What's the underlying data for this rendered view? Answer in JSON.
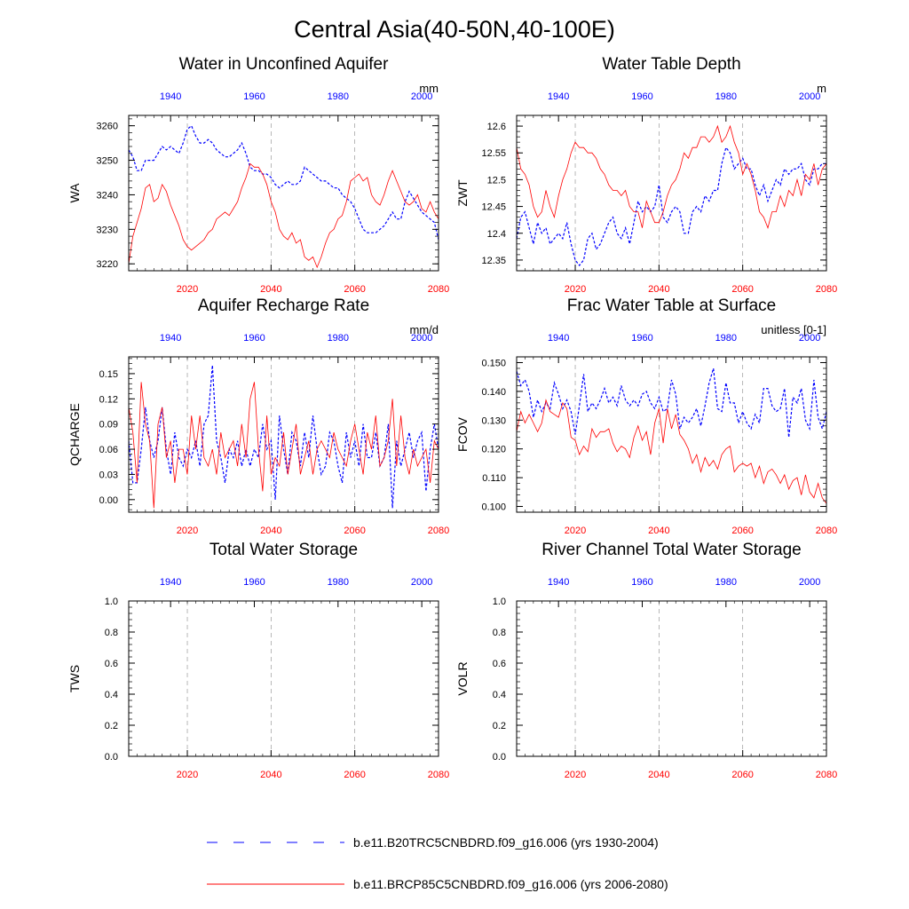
{
  "page_title": "Central Asia(40-50N,40-100E)",
  "colors": {
    "hist": "#0000ff",
    "future": "#ff0000",
    "axis": "#000000",
    "grid": "#999999"
  },
  "legend": [
    {
      "label": "b.e11.B20TRC5CNBDRD.f09_g16.006 (yrs 1930-2004)",
      "color": "#0000ff",
      "style": "dashed"
    },
    {
      "label": "b.e11.BRCP85C5CNBDRD.f09_g16.006 (yrs 2006-2080)",
      "color": "#ff0000",
      "style": "solid"
    }
  ],
  "chart_data": [
    {
      "type": "line",
      "title": "Water in Unconfined Aquifer",
      "ylabel": "WA",
      "units": "mm",
      "ylim": [
        3218,
        3263
      ],
      "yticks": [
        3220,
        3230,
        3240,
        3250,
        3260
      ],
      "bottom_axis": {
        "range": [
          2006,
          2080
        ],
        "ticks": [
          2020,
          2040,
          2060,
          2080
        ]
      },
      "top_axis": {
        "range": [
          1930,
          2004
        ],
        "ticks": [
          1940,
          1960,
          1980,
          2000
        ]
      },
      "vgrid": [
        2020,
        2040,
        2060
      ],
      "series": [
        {
          "color": "#0000ff",
          "dash": true,
          "x_from": 1930,
          "values": [
            3253,
            3251,
            3247,
            3247,
            3250,
            3250,
            3250,
            3252,
            3254,
            3253,
            3254,
            3253,
            3252,
            3255,
            3259,
            3260,
            3257,
            3255,
            3255,
            3256,
            3255,
            3253,
            3252,
            3251,
            3251,
            3252,
            3253,
            3255,
            3252,
            3248,
            3247,
            3247,
            3246,
            3246,
            3245,
            3243,
            3242,
            3243,
            3244,
            3243,
            3243,
            3244,
            3248,
            3247,
            3246,
            3245,
            3244,
            3244,
            3243,
            3242,
            3242,
            3240,
            3239,
            3238,
            3236,
            3233,
            3230,
            3229,
            3229,
            3229,
            3230,
            3231,
            3233,
            3235,
            3233,
            3233,
            3238,
            3241,
            3239,
            3237,
            3235,
            3234,
            3233,
            3232,
            3227
          ]
        },
        {
          "color": "#ff0000",
          "dash": false,
          "x_from": 2006,
          "values": [
            3220,
            3228,
            3232,
            3236,
            3242,
            3243,
            3238,
            3239,
            3243,
            3241,
            3237,
            3234,
            3231,
            3227,
            3225,
            3224,
            3225,
            3226,
            3227,
            3229,
            3230,
            3233,
            3234,
            3235,
            3234,
            3236,
            3238,
            3242,
            3245,
            3249,
            3248,
            3248,
            3246,
            3243,
            3238,
            3235,
            3230,
            3228,
            3227,
            3229,
            3226,
            3227,
            3222,
            3221,
            3222,
            3219,
            3222,
            3226,
            3229,
            3230,
            3233,
            3234,
            3238,
            3244,
            3245,
            3246,
            3244,
            3245,
            3240,
            3238,
            3237,
            3240,
            3244,
            3247,
            3244,
            3241,
            3238,
            3237,
            3238,
            3240,
            3236,
            3235,
            3238,
            3235,
            3233
          ]
        }
      ]
    },
    {
      "type": "line",
      "title": "Water Table Depth",
      "ylabel": "ZWT",
      "units": "m",
      "ylim": [
        12.33,
        12.62
      ],
      "yticks": [
        12.35,
        12.4,
        12.45,
        12.5,
        12.55,
        12.6
      ],
      "bottom_axis": {
        "range": [
          2006,
          2080
        ],
        "ticks": [
          2020,
          2040,
          2060,
          2080
        ]
      },
      "top_axis": {
        "range": [
          1930,
          2004
        ],
        "ticks": [
          1940,
          1960,
          1980,
          2000
        ]
      },
      "vgrid": [
        2020,
        2040,
        2060
      ],
      "series": [
        {
          "color": "#0000ff",
          "dash": true,
          "x_from": 1930,
          "values": [
            12.39,
            12.43,
            12.44,
            12.41,
            12.38,
            12.42,
            12.4,
            12.41,
            12.38,
            12.39,
            12.4,
            12.39,
            12.42,
            12.38,
            12.35,
            12.34,
            12.35,
            12.39,
            12.4,
            12.37,
            12.38,
            12.4,
            12.42,
            12.43,
            12.4,
            12.39,
            12.41,
            12.38,
            12.42,
            12.46,
            12.44,
            12.45,
            12.44,
            12.45,
            12.49,
            12.43,
            12.42,
            12.44,
            12.45,
            12.44,
            12.4,
            12.4,
            12.44,
            12.45,
            12.44,
            12.47,
            12.46,
            12.48,
            12.48,
            12.53,
            12.56,
            12.55,
            12.52,
            12.53,
            12.54,
            12.52,
            12.52,
            12.49,
            12.47,
            12.49,
            12.46,
            12.48,
            12.5,
            12.49,
            12.52,
            12.51,
            12.52,
            12.52,
            12.53,
            12.5,
            12.49,
            12.52,
            12.52,
            12.53,
            12.53
          ]
        },
        {
          "color": "#ff0000",
          "dash": false,
          "x_from": 2006,
          "values": [
            12.56,
            12.52,
            12.51,
            12.49,
            12.45,
            12.43,
            12.44,
            12.48,
            12.45,
            12.43,
            12.47,
            12.5,
            12.52,
            12.55,
            12.57,
            12.56,
            12.56,
            12.55,
            12.55,
            12.54,
            12.52,
            12.51,
            12.49,
            12.48,
            12.48,
            12.47,
            12.48,
            12.45,
            12.44,
            12.44,
            12.41,
            12.46,
            12.44,
            12.42,
            12.42,
            12.44,
            12.47,
            12.49,
            12.5,
            12.52,
            12.55,
            12.54,
            12.56,
            12.56,
            12.58,
            12.58,
            12.57,
            12.58,
            12.6,
            12.57,
            12.58,
            12.6,
            12.57,
            12.55,
            12.51,
            12.53,
            12.51,
            12.48,
            12.44,
            12.43,
            12.41,
            12.44,
            12.44,
            12.47,
            12.45,
            12.48,
            12.47,
            12.5,
            12.47,
            12.51,
            12.5,
            12.53,
            12.49,
            12.52,
            12.53
          ]
        }
      ]
    },
    {
      "type": "line",
      "title": "Aquifer Recharge Rate",
      "ylabel": "QCHARGE",
      "units": "mm/d",
      "ylim": [
        -0.015,
        0.17
      ],
      "yticks": [
        0.0,
        0.03,
        0.06,
        0.09,
        0.12,
        0.15
      ],
      "ytick_labels": [
        "0.00",
        "0.03",
        "0.06",
        "0.09",
        "0.12",
        "0.15"
      ],
      "bottom_axis": {
        "range": [
          2006,
          2080
        ],
        "ticks": [
          2020,
          2040,
          2060,
          2080
        ]
      },
      "top_axis": {
        "range": [
          1930,
          2004
        ],
        "ticks": [
          1940,
          1960,
          1980,
          2000
        ]
      },
      "vgrid": [
        2020,
        2040,
        2060
      ],
      "series": [
        {
          "color": "#0000ff",
          "dash": true,
          "x_from": 1930,
          "values": [
            0.07,
            0.02,
            0.02,
            0.06,
            0.11,
            0.07,
            0.05,
            0.07,
            0.11,
            0.06,
            0.03,
            0.08,
            0.05,
            0.04,
            0.06,
            0.05,
            0.07,
            0.04,
            0.09,
            0.1,
            0.16,
            0.07,
            0.05,
            0.02,
            0.06,
            0.05,
            0.07,
            0.04,
            0.06,
            0.04,
            0.06,
            0.05,
            0.09,
            0.06,
            0.07,
            0.0,
            0.1,
            0.06,
            0.03,
            0.08,
            0.07,
            0.04,
            0.08,
            0.05,
            0.1,
            0.06,
            0.03,
            0.04,
            0.08,
            0.07,
            0.04,
            0.02,
            0.08,
            0.05,
            0.07,
            0.04,
            0.09,
            0.05,
            0.05,
            0.08,
            0.04,
            0.05,
            0.09,
            -0.01,
            0.07,
            0.04,
            0.06,
            0.08,
            0.05,
            0.07,
            0.08,
            0.01,
            0.06,
            0.09,
            0.06
          ]
        },
        {
          "color": "#ff0000",
          "dash": false,
          "x_from": 2006,
          "values": [
            0.11,
            0.08,
            0.02,
            0.14,
            0.09,
            0.07,
            -0.01,
            0.09,
            0.11,
            0.05,
            0.07,
            0.02,
            0.06,
            0.06,
            0.03,
            0.1,
            0.06,
            0.1,
            0.05,
            0.04,
            0.06,
            0.03,
            0.08,
            0.05,
            0.06,
            0.07,
            0.04,
            0.09,
            0.05,
            0.12,
            0.14,
            0.06,
            0.01,
            0.1,
            0.03,
            0.05,
            0.04,
            0.08,
            0.03,
            0.06,
            0.09,
            0.03,
            0.05,
            0.07,
            0.03,
            0.06,
            0.07,
            0.06,
            0.05,
            0.08,
            0.06,
            0.05,
            0.04,
            0.07,
            0.09,
            0.06,
            0.03,
            0.08,
            0.06,
            0.1,
            0.04,
            0.05,
            0.07,
            0.12,
            0.04,
            0.1,
            0.05,
            0.03,
            0.06,
            0.04,
            0.05,
            0.06,
            0.02,
            0.07,
            0.06
          ]
        }
      ]
    },
    {
      "type": "line",
      "title": "Frac Water Table at Surface",
      "ylabel": "FCOV",
      "units": "unitless [0-1]",
      "ylim": [
        0.098,
        0.152
      ],
      "yticks": [
        0.1,
        0.11,
        0.12,
        0.13,
        0.14,
        0.15
      ],
      "ytick_labels": [
        "0.100",
        "0.110",
        "0.120",
        "0.130",
        "0.140",
        "0.150"
      ],
      "bottom_axis": {
        "range": [
          2006,
          2080
        ],
        "ticks": [
          2020,
          2040,
          2060,
          2080
        ]
      },
      "top_axis": {
        "range": [
          1930,
          2004
        ],
        "ticks": [
          1940,
          1960,
          1980,
          2000
        ]
      },
      "vgrid": [
        2020,
        2040,
        2060
      ],
      "series": [
        {
          "color": "#0000ff",
          "dash": true,
          "x_from": 1930,
          "values": [
            0.147,
            0.142,
            0.144,
            0.14,
            0.131,
            0.137,
            0.133,
            0.136,
            0.134,
            0.143,
            0.139,
            0.134,
            0.137,
            0.133,
            0.125,
            0.135,
            0.146,
            0.133,
            0.136,
            0.134,
            0.137,
            0.141,
            0.136,
            0.138,
            0.135,
            0.142,
            0.137,
            0.135,
            0.137,
            0.135,
            0.139,
            0.14,
            0.136,
            0.134,
            0.138,
            0.133,
            0.134,
            0.144,
            0.139,
            0.127,
            0.131,
            0.129,
            0.131,
            0.134,
            0.128,
            0.135,
            0.143,
            0.148,
            0.134,
            0.133,
            0.143,
            0.136,
            0.136,
            0.129,
            0.133,
            0.129,
            0.127,
            0.132,
            0.129,
            0.141,
            0.141,
            0.135,
            0.133,
            0.134,
            0.141,
            0.124,
            0.138,
            0.136,
            0.141,
            0.13,
            0.127,
            0.144,
            0.131,
            0.127,
            0.133
          ]
        },
        {
          "color": "#ff0000",
          "dash": false,
          "x_from": 2006,
          "values": [
            0.126,
            0.133,
            0.129,
            0.132,
            0.129,
            0.126,
            0.129,
            0.137,
            0.133,
            0.132,
            0.131,
            0.136,
            0.134,
            0.124,
            0.123,
            0.118,
            0.121,
            0.119,
            0.127,
            0.124,
            0.126,
            0.126,
            0.127,
            0.122,
            0.119,
            0.121,
            0.12,
            0.117,
            0.124,
            0.128,
            0.123,
            0.126,
            0.118,
            0.129,
            0.134,
            0.122,
            0.134,
            0.127,
            0.132,
            0.125,
            0.123,
            0.12,
            0.115,
            0.118,
            0.112,
            0.117,
            0.114,
            0.116,
            0.113,
            0.118,
            0.12,
            0.121,
            0.112,
            0.114,
            0.115,
            0.114,
            0.115,
            0.11,
            0.114,
            0.108,
            0.112,
            0.113,
            0.111,
            0.108,
            0.111,
            0.106,
            0.109,
            0.11,
            0.104,
            0.111,
            0.105,
            0.103,
            0.108,
            0.103,
            0.101
          ]
        }
      ]
    },
    {
      "type": "line",
      "title": "Total Water Storage",
      "ylabel": "TWS",
      "units": "",
      "ylim": [
        0,
        1
      ],
      "yticks": [
        0,
        0.2,
        0.4,
        0.6,
        0.8,
        1.0
      ],
      "ytick_labels": [
        "0.0",
        "0.2",
        "0.4",
        "0.6",
        "0.8",
        "1.0"
      ],
      "bottom_axis": {
        "range": [
          2006,
          2080
        ],
        "ticks": [
          2020,
          2040,
          2060,
          2080
        ]
      },
      "top_axis": {
        "range": [
          1930,
          2004
        ],
        "ticks": [
          1940,
          1960,
          1980,
          2000
        ]
      },
      "vgrid": [
        2020,
        2040,
        2060
      ],
      "series": []
    },
    {
      "type": "line",
      "title": "River Channel Total Water Storage",
      "ylabel": "VOLR",
      "units": "",
      "ylim": [
        0,
        1
      ],
      "yticks": [
        0,
        0.2,
        0.4,
        0.6,
        0.8,
        1.0
      ],
      "ytick_labels": [
        "0.0",
        "0.2",
        "0.4",
        "0.6",
        "0.8",
        "1.0"
      ],
      "bottom_axis": {
        "range": [
          2006,
          2080
        ],
        "ticks": [
          2020,
          2040,
          2060,
          2080
        ]
      },
      "top_axis": {
        "range": [
          1930,
          2004
        ],
        "ticks": [
          1940,
          1960,
          1980,
          2000
        ]
      },
      "vgrid": [
        2020,
        2040,
        2060
      ],
      "series": []
    }
  ]
}
